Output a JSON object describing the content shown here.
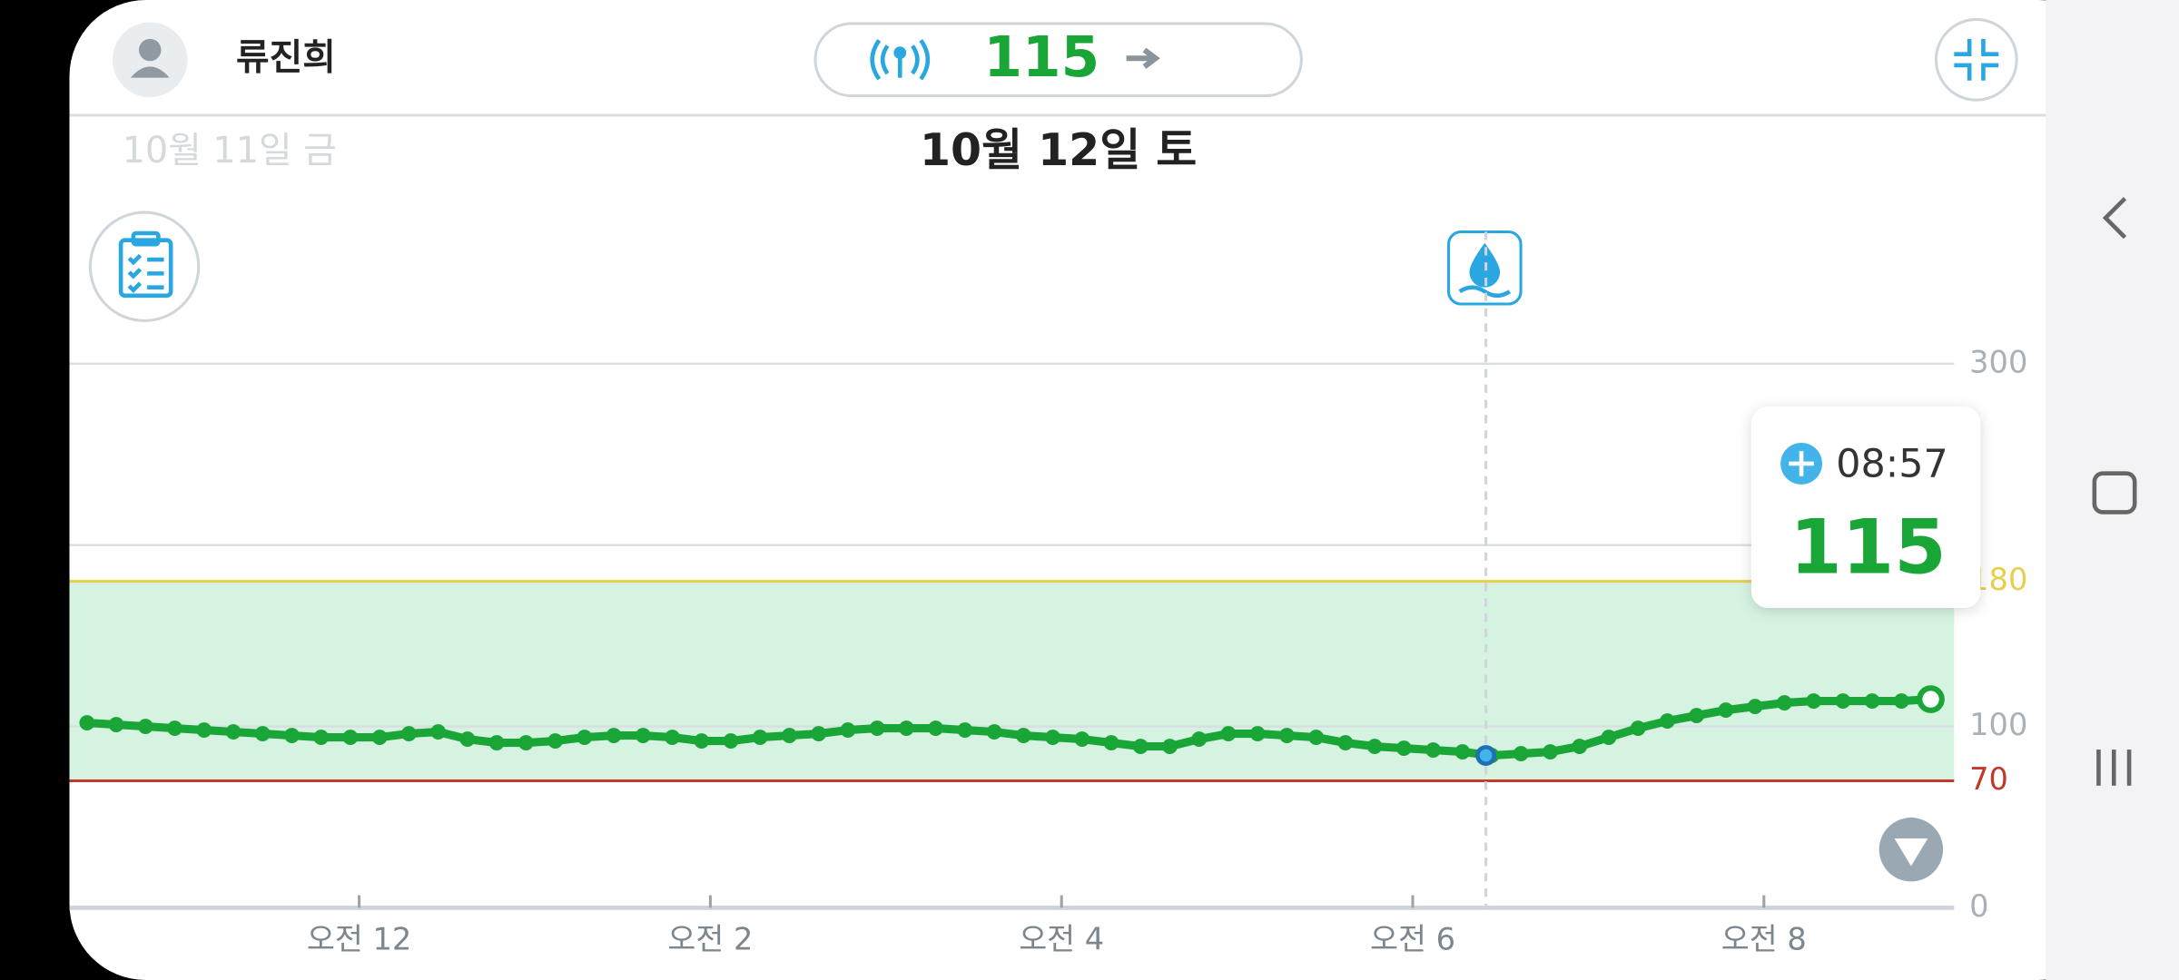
{
  "header": {
    "name": "류진희",
    "current_value": 115
  },
  "dates": {
    "previous": "10월 11일 금",
    "current": "10월 12일 토"
  },
  "tooltip": {
    "time": "08:57",
    "value": 115
  },
  "chart_data": {
    "type": "line",
    "x": [
      -93,
      -83,
      -73,
      -63,
      -53,
      -43,
      -33,
      -23,
      -13,
      -3,
      7,
      17,
      27,
      37,
      47,
      57,
      67,
      77,
      87,
      97,
      107,
      117,
      127,
      137,
      147,
      157,
      167,
      177,
      187,
      197,
      207,
      217,
      227,
      237,
      247,
      257,
      267,
      277,
      287,
      297,
      307,
      317,
      327,
      337,
      347,
      357,
      367,
      377,
      387,
      397,
      407,
      417,
      427,
      437,
      447,
      457,
      467,
      477,
      487,
      497,
      507,
      517,
      527,
      537
    ],
    "values": [
      102,
      101,
      100,
      99,
      98,
      97,
      96,
      95,
      94,
      94,
      94,
      96,
      97,
      93,
      91,
      91,
      92,
      94,
      95,
      95,
      94,
      92,
      92,
      94,
      95,
      96,
      98,
      99,
      99,
      99,
      98,
      97,
      95,
      94,
      93,
      91,
      89,
      89,
      93,
      96,
      96,
      95,
      94,
      91,
      89,
      88,
      87,
      86,
      84,
      85,
      86,
      89,
      94,
      99,
      103,
      106,
      109,
      111,
      113,
      114,
      114,
      114,
      114,
      115
    ],
    "color": "#1aa637",
    "xlim": [
      -99,
      545
    ],
    "xticks": [
      {
        "value": 0,
        "label": "오전 12"
      },
      {
        "value": 120,
        "label": "오전 2"
      },
      {
        "value": 240,
        "label": "오전 4"
      },
      {
        "value": 360,
        "label": "오전 6"
      },
      {
        "value": 480,
        "label": "오전 8"
      }
    ],
    "ylim": [
      0,
      300
    ],
    "yticks": [
      0,
      70,
      100,
      180,
      300
    ],
    "ygrid": [
      100,
      200,
      300
    ],
    "target_range": [
      70,
      180
    ],
    "target_fill": "#d6f3e1",
    "high_color": "#e6cf4a",
    "low_color": "#c0392b",
    "event": {
      "x": 385,
      "value": 84,
      "color": "#1f6fb5"
    }
  }
}
